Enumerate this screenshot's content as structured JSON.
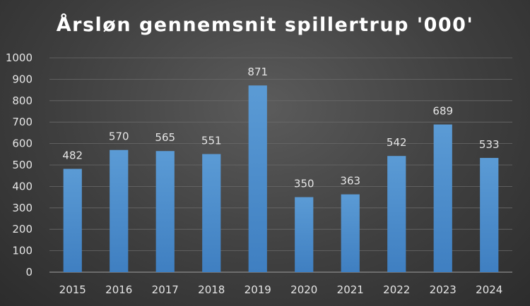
{
  "chart_data": {
    "type": "bar",
    "title": "Årsløn gennemsnit spillertrup '000'",
    "xlabel": "",
    "ylabel": "",
    "categories": [
      "2015",
      "2016",
      "2017",
      "2018",
      "2019",
      "2020",
      "2021",
      "2022",
      "2023",
      "2024"
    ],
    "values": [
      482,
      570,
      565,
      551,
      871,
      350,
      363,
      542,
      689,
      533
    ],
    "data_labels": [
      "482",
      "570",
      "565",
      "551",
      "871",
      "350",
      "363",
      "542",
      "689",
      "533"
    ],
    "ylim": [
      0,
      1000
    ],
    "yticks": [
      "0",
      "100",
      "200",
      "300",
      "400",
      "500",
      "600",
      "700",
      "800",
      "900",
      "1000"
    ],
    "grid": true,
    "legend": "none",
    "colors": {
      "bar_top": "#5b9bd5",
      "bar_bottom": "#3f7fc1",
      "grid": "#6a6a6a",
      "axis": "#8c8c8c"
    }
  }
}
